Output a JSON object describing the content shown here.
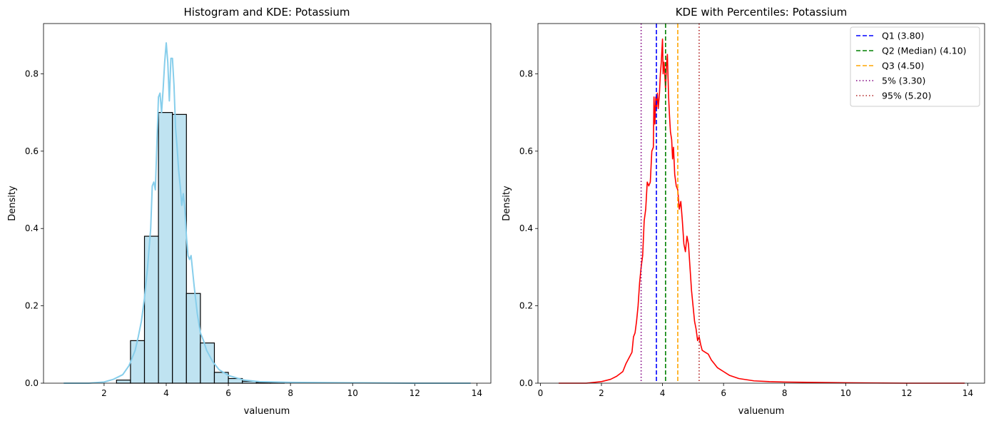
{
  "colors": {
    "bar_fill": "#bfe3f1",
    "bar_edge": "#000000",
    "kde_left": "#87ceeb",
    "kde_right": "#ff0000",
    "q1": "#0000ff",
    "q2": "#008000",
    "q3": "#ffa500",
    "p5": "#800080",
    "p95": "#b22222"
  },
  "chart_data": [
    {
      "type": "bar",
      "title": "Histogram and KDE: Potassium",
      "xlabel": "valuenum",
      "ylabel": "Density",
      "xlim": [
        0.05,
        14.45
      ],
      "ylim": [
        0,
        0.93
      ],
      "xticks": [
        2,
        4,
        6,
        8,
        10,
        12,
        14
      ],
      "yticks": [
        0.0,
        0.2,
        0.4,
        0.6,
        0.8
      ],
      "xtick_labels": [
        "2",
        "4",
        "6",
        "8",
        "10",
        "12",
        "14"
      ],
      "ytick_labels": [
        "0.0",
        "0.2",
        "0.4",
        "0.6",
        "0.8"
      ],
      "grid": false,
      "histogram": {
        "bin_edges": [
          2.4,
          2.85,
          3.3,
          3.75,
          4.2,
          4.65,
          5.1,
          5.55,
          6.0,
          6.45,
          6.9,
          7.35,
          7.8
        ],
        "values": [
          0.008,
          0.11,
          0.38,
          0.7,
          0.695,
          0.232,
          0.104,
          0.028,
          0.012,
          0.005,
          0.002,
          0.001
        ]
      },
      "kde_curve": {
        "x": [
          0.7,
          1.5,
          2.0,
          2.3,
          2.6,
          2.8,
          3.0,
          3.1,
          3.2,
          3.3,
          3.4,
          3.5,
          3.55,
          3.6,
          3.65,
          3.7,
          3.75,
          3.8,
          3.85,
          3.9,
          3.95,
          4.0,
          4.05,
          4.1,
          4.15,
          4.2,
          4.25,
          4.3,
          4.35,
          4.4,
          4.45,
          4.5,
          4.55,
          4.6,
          4.65,
          4.7,
          4.75,
          4.8,
          4.9,
          5.0,
          5.1,
          5.2,
          5.3,
          5.4,
          5.5,
          5.7,
          6.0,
          6.5,
          7.0,
          8.0,
          10.0,
          12.0,
          13.8
        ],
        "y": [
          0.0,
          0.0,
          0.003,
          0.01,
          0.022,
          0.045,
          0.085,
          0.12,
          0.16,
          0.22,
          0.3,
          0.4,
          0.51,
          0.52,
          0.5,
          0.62,
          0.74,
          0.75,
          0.7,
          0.76,
          0.83,
          0.88,
          0.83,
          0.73,
          0.84,
          0.84,
          0.77,
          0.66,
          0.61,
          0.55,
          0.51,
          0.46,
          0.49,
          0.45,
          0.38,
          0.33,
          0.32,
          0.33,
          0.25,
          0.18,
          0.13,
          0.11,
          0.085,
          0.07,
          0.055,
          0.035,
          0.02,
          0.008,
          0.004,
          0.002,
          0.001,
          0.0,
          0.0
        ]
      }
    },
    {
      "type": "line",
      "title": "KDE with Percentiles: Potassium",
      "xlabel": "valuenum",
      "ylabel": "Density",
      "xlim": [
        -0.08,
        14.55
      ],
      "ylim": [
        0,
        0.93
      ],
      "xticks": [
        0,
        2,
        4,
        6,
        8,
        10,
        12,
        14
      ],
      "yticks": [
        0.0,
        0.2,
        0.4,
        0.6,
        0.8
      ],
      "xtick_labels": [
        "0",
        "2",
        "4",
        "6",
        "8",
        "10",
        "12",
        "14"
      ],
      "ytick_labels": [
        "0.0",
        "0.2",
        "0.4",
        "0.6",
        "0.8"
      ],
      "grid": false,
      "legend_position": "top-right",
      "series": [
        {
          "name": "",
          "x": [
            0.6,
            1.5,
            2.0,
            2.3,
            2.5,
            2.7,
            2.8,
            2.9,
            3.0,
            3.05,
            3.1,
            3.15,
            3.2,
            3.25,
            3.3,
            3.35,
            3.4,
            3.45,
            3.5,
            3.55,
            3.6,
            3.65,
            3.7,
            3.72,
            3.75,
            3.78,
            3.8,
            3.83,
            3.86,
            3.9,
            3.93,
            3.96,
            4.0,
            4.02,
            4.05,
            4.08,
            4.1,
            4.13,
            4.16,
            4.2,
            4.23,
            4.26,
            4.3,
            4.33,
            4.36,
            4.4,
            4.45,
            4.5,
            4.55,
            4.6,
            4.65,
            4.7,
            4.75,
            4.8,
            4.85,
            4.9,
            4.95,
            5.0,
            5.05,
            5.1,
            5.15,
            5.2,
            5.25,
            5.3,
            5.4,
            5.5,
            5.6,
            5.7,
            5.8,
            5.9,
            6.0,
            6.2,
            6.5,
            7.0,
            7.5,
            8.0,
            9.0,
            10.0,
            12.0,
            13.9
          ],
          "y": [
            0.0,
            0.0,
            0.004,
            0.01,
            0.018,
            0.03,
            0.05,
            0.065,
            0.08,
            0.12,
            0.13,
            0.16,
            0.2,
            0.26,
            0.3,
            0.33,
            0.42,
            0.45,
            0.52,
            0.51,
            0.52,
            0.6,
            0.61,
            0.74,
            0.67,
            0.74,
            0.71,
            0.75,
            0.71,
            0.75,
            0.8,
            0.83,
            0.89,
            0.8,
            0.83,
            0.79,
            0.76,
            0.82,
            0.85,
            0.74,
            0.69,
            0.65,
            0.63,
            0.58,
            0.61,
            0.54,
            0.51,
            0.5,
            0.45,
            0.47,
            0.42,
            0.36,
            0.34,
            0.38,
            0.36,
            0.3,
            0.24,
            0.2,
            0.16,
            0.14,
            0.11,
            0.12,
            0.1,
            0.085,
            0.08,
            0.075,
            0.06,
            0.05,
            0.04,
            0.035,
            0.03,
            0.02,
            0.012,
            0.006,
            0.004,
            0.003,
            0.002,
            0.001,
            0.0,
            0.0
          ]
        }
      ],
      "reference_lines": [
        {
          "label": "Q1 (3.80)",
          "x": 3.8,
          "style": "dashed",
          "color_key": "q1"
        },
        {
          "label": "Q2 (Median) (4.10)",
          "x": 4.1,
          "style": "dashed",
          "color_key": "q2"
        },
        {
          "label": "Q3 (4.50)",
          "x": 4.5,
          "style": "dashed",
          "color_key": "q3"
        },
        {
          "label": "5% (3.30)",
          "x": 3.3,
          "style": "dotted",
          "color_key": "p5"
        },
        {
          "label": "95% (5.20)",
          "x": 5.2,
          "style": "dotted",
          "color_key": "p95"
        }
      ]
    }
  ]
}
